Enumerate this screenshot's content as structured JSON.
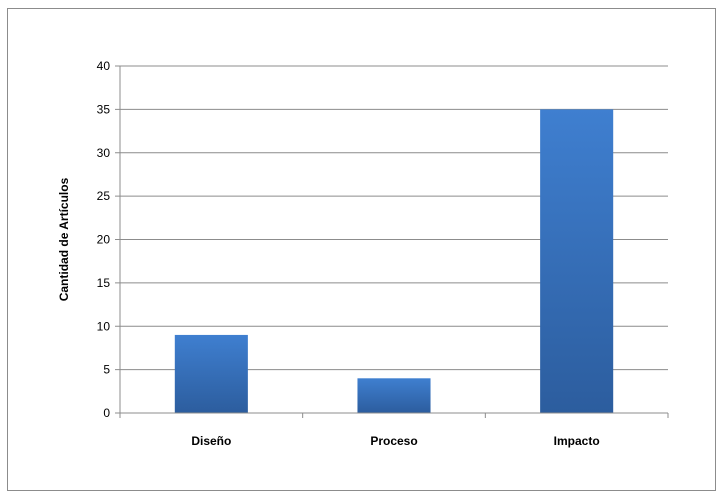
{
  "chart_data": {
    "type": "bar",
    "title": "",
    "xlabel": "",
    "ylabel": "Cantidad de Artículos",
    "categories": [
      "Diseño",
      "Proceso",
      "Impacto"
    ],
    "values": [
      9,
      4,
      35
    ],
    "ylim": [
      0,
      40
    ],
    "yticks": [
      0,
      5,
      10,
      15,
      20,
      25,
      30,
      35,
      40
    ],
    "grid": true,
    "legend": "none",
    "colors": {
      "bar_top": "#3f7fd0",
      "bar_bottom": "#2c5d9e",
      "grid": "#8c8c8c",
      "axis": "#8c8c8c"
    }
  }
}
